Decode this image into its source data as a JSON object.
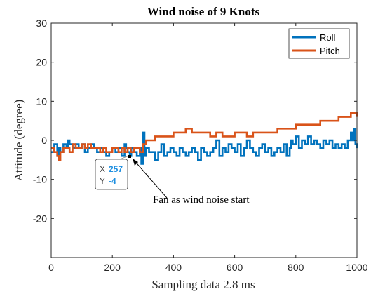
{
  "chart_data": {
    "type": "line",
    "title": "Wind noise of 9 Knots",
    "xlabel": "Sampling data 2.8 ms",
    "ylabel": "Attitude (degree)",
    "xlim": [
      0,
      1000
    ],
    "ylim": [
      -30,
      30
    ],
    "xticks": [
      0,
      200,
      400,
      600,
      800,
      1000
    ],
    "xtick_labels": [
      "0",
      "200",
      "400",
      "600",
      "800",
      "1000"
    ],
    "yticks": [
      -20,
      -10,
      0,
      10,
      20,
      30
    ],
    "ytick_labels": [
      "-20",
      "-10",
      "0",
      "10",
      "20",
      "30"
    ],
    "grid": false,
    "legend_position": "top-right",
    "series": [
      {
        "name": "Roll",
        "color": "#0072BD",
        "x": [
          0,
          10,
          20,
          25,
          30,
          40,
          50,
          55,
          60,
          70,
          80,
          90,
          100,
          110,
          120,
          130,
          140,
          150,
          160,
          170,
          180,
          190,
          200,
          210,
          220,
          230,
          240,
          245,
          250,
          257,
          262,
          270,
          280,
          290,
          295,
          300,
          305,
          310,
          320,
          330,
          340,
          350,
          360,
          370,
          380,
          390,
          400,
          410,
          420,
          430,
          440,
          450,
          460,
          470,
          480,
          490,
          500,
          510,
          520,
          530,
          540,
          550,
          560,
          570,
          580,
          590,
          600,
          610,
          620,
          630,
          640,
          650,
          660,
          670,
          680,
          690,
          700,
          710,
          720,
          730,
          740,
          750,
          760,
          770,
          780,
          785,
          790,
          800,
          810,
          820,
          830,
          840,
          850,
          860,
          870,
          880,
          890,
          900,
          910,
          920,
          930,
          940,
          950,
          960,
          970,
          980,
          985,
          990,
          995,
          1000
        ],
        "values": [
          -3,
          -1,
          -4,
          -2,
          -3,
          -1,
          -2,
          0,
          -1,
          -2,
          -1,
          -2,
          -1,
          -3,
          -2,
          -1,
          -2,
          -3,
          -2,
          -3,
          -4,
          -3,
          -2,
          -3,
          -2,
          -4,
          -1,
          -2,
          -3,
          -4,
          -2,
          -3,
          -4,
          -2,
          -6,
          2,
          -4,
          -2,
          -3,
          -3,
          -5,
          -3,
          -1,
          -4,
          -3,
          -2,
          -3,
          -4,
          -2,
          -3,
          -4,
          -3,
          -2,
          -3,
          -5,
          -2,
          -3,
          -4,
          -3,
          -2,
          0,
          -4,
          -2,
          -3,
          -1,
          -2,
          -3,
          -1,
          -4,
          -2,
          0,
          -2,
          -3,
          -4,
          -2,
          -1,
          -3,
          -2,
          -4,
          -3,
          -2,
          -3,
          -1,
          -4,
          -2,
          0,
          -1,
          1,
          -2,
          0,
          -1,
          1,
          -1,
          0,
          -1,
          -2,
          0,
          -1,
          0,
          -2,
          -1,
          -2,
          -1,
          -2,
          0,
          2,
          0,
          3,
          -1,
          -2
        ]
      },
      {
        "name": "Pitch",
        "color": "#D95319",
        "x": [
          0,
          10,
          20,
          25,
          30,
          40,
          50,
          60,
          70,
          80,
          90,
          100,
          110,
          120,
          130,
          140,
          150,
          160,
          170,
          180,
          190,
          200,
          210,
          220,
          230,
          240,
          250,
          260,
          270,
          280,
          290,
          300,
          310,
          320,
          330,
          340,
          350,
          360,
          380,
          400,
          420,
          440,
          460,
          480,
          500,
          520,
          540,
          560,
          580,
          600,
          620,
          640,
          660,
          680,
          700,
          720,
          740,
          760,
          780,
          800,
          820,
          840,
          860,
          880,
          900,
          920,
          940,
          960,
          980,
          1000
        ],
        "values": [
          -2,
          -3,
          -4,
          -5,
          -3,
          -2,
          -2,
          -3,
          -1,
          -2,
          -2,
          -1,
          -2,
          -1,
          -2,
          -2,
          -2,
          -3,
          -2,
          -3,
          -3,
          -2,
          -2,
          -3,
          -2,
          -3,
          -2,
          -3,
          -2,
          -2,
          -3,
          -1,
          0,
          0,
          0,
          1,
          1,
          1,
          1,
          2,
          2,
          3,
          2,
          2,
          2,
          1,
          2,
          1,
          1,
          2,
          2,
          1,
          2,
          2,
          2,
          2,
          3,
          3,
          3,
          4,
          4,
          4,
          4,
          5,
          5,
          5,
          6,
          6,
          7,
          6
        ]
      }
    ],
    "datatip": {
      "x_label": "X",
      "x_value": "257",
      "y_label": "Y",
      "y_value": "-4",
      "x": 257,
      "y": -4
    },
    "annotation": {
      "text": "Fan as wind noise start",
      "x": 257,
      "y": -4
    }
  }
}
